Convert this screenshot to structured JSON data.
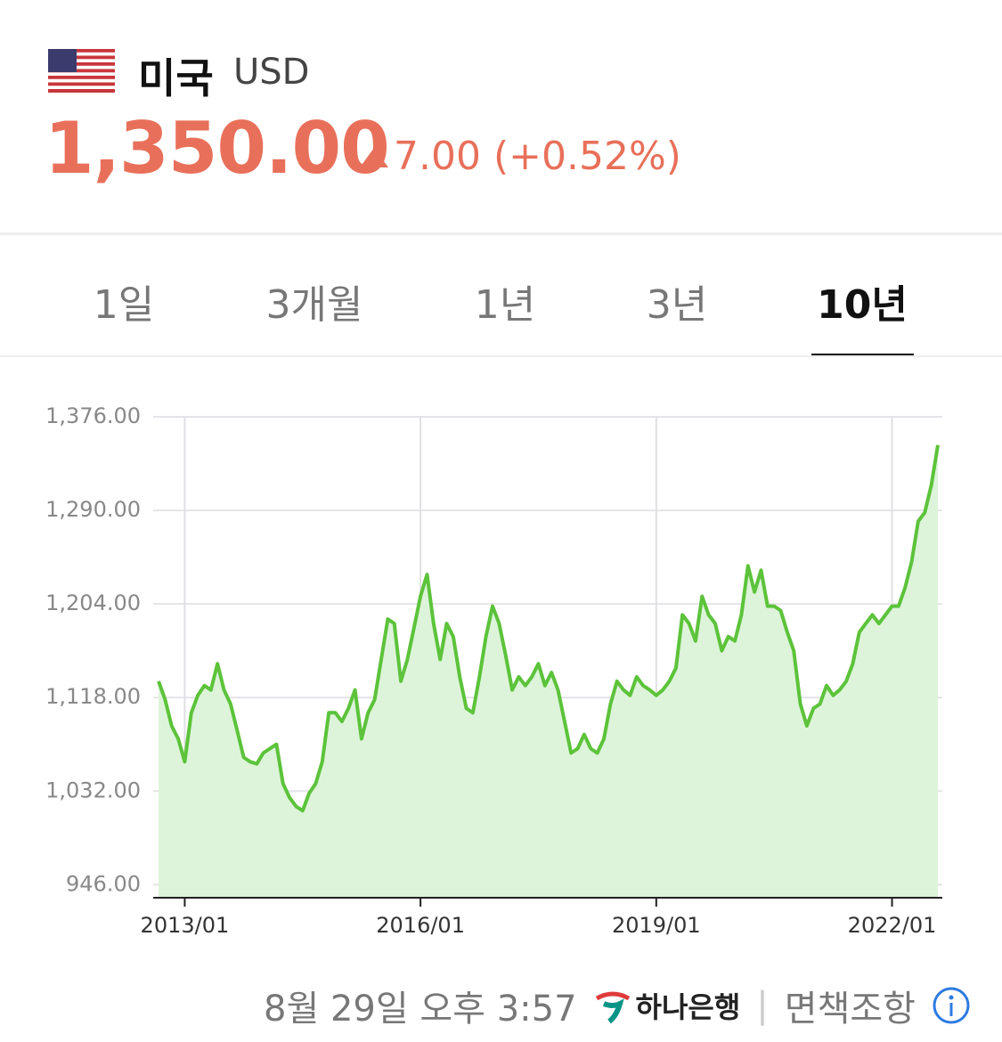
{
  "header": {
    "country": "미국",
    "currency": "USD",
    "price": "1,350.00",
    "change": "7.00",
    "change_pct": "(+0.52%)"
  },
  "tabs": [
    "1일",
    "3개월",
    "1년",
    "3년",
    "10년"
  ],
  "active_tab": 4,
  "chart_data": {
    "type": "line",
    "x": [
      "2012/09",
      "2012/10",
      "2012/11",
      "2012/12",
      "2013/01",
      "2013/02",
      "2013/03",
      "2013/04",
      "2013/05",
      "2013/06",
      "2013/07",
      "2013/08",
      "2013/09",
      "2013/10",
      "2013/11",
      "2013/12",
      "2014/01",
      "2014/02",
      "2014/03",
      "2014/04",
      "2014/05",
      "2014/06",
      "2014/07",
      "2014/08",
      "2014/09",
      "2014/10",
      "2014/11",
      "2014/12",
      "2015/01",
      "2015/02",
      "2015/03",
      "2015/04",
      "2015/05",
      "2015/06",
      "2015/07",
      "2015/08",
      "2015/09",
      "2015/10",
      "2015/11",
      "2015/12",
      "2016/01",
      "2016/02",
      "2016/03",
      "2016/04",
      "2016/05",
      "2016/06",
      "2016/07",
      "2016/08",
      "2016/09",
      "2016/10",
      "2016/11",
      "2016/12",
      "2017/01",
      "2017/02",
      "2017/03",
      "2017/04",
      "2017/05",
      "2017/06",
      "2017/07",
      "2017/08",
      "2017/09",
      "2017/10",
      "2017/11",
      "2017/12",
      "2018/01",
      "2018/02",
      "2018/03",
      "2018/04",
      "2018/05",
      "2018/06",
      "2018/07",
      "2018/08",
      "2018/09",
      "2018/10",
      "2018/11",
      "2018/12",
      "2019/01",
      "2019/02",
      "2019/03",
      "2019/04",
      "2019/05",
      "2019/06",
      "2019/07",
      "2019/08",
      "2019/09",
      "2019/10",
      "2019/11",
      "2019/12",
      "2020/01",
      "2020/02",
      "2020/03",
      "2020/04",
      "2020/05",
      "2020/06",
      "2020/07",
      "2020/08",
      "2020/09",
      "2020/10",
      "2020/11",
      "2020/12",
      "2021/01",
      "2021/02",
      "2021/03",
      "2021/04",
      "2021/05",
      "2021/06",
      "2021/07",
      "2021/08",
      "2021/09",
      "2021/10",
      "2021/11",
      "2021/12",
      "2022/01",
      "2022/02",
      "2022/03",
      "2022/04",
      "2022/05",
      "2022/06",
      "2022/07",
      "2022/08"
    ],
    "values": [
      1133,
      1116,
      1092,
      1080,
      1059,
      1104,
      1120,
      1129,
      1125,
      1149,
      1125,
      1112,
      1088,
      1063,
      1059,
      1057,
      1067,
      1071,
      1075,
      1039,
      1026,
      1018,
      1014,
      1030,
      1039,
      1059,
      1104,
      1104,
      1096,
      1108,
      1125,
      1080,
      1104,
      1116,
      1153,
      1190,
      1186,
      1133,
      1153,
      1182,
      1211,
      1231,
      1186,
      1153,
      1186,
      1174,
      1137,
      1108,
      1104,
      1137,
      1174,
      1202,
      1186,
      1157,
      1125,
      1137,
      1129,
      1137,
      1149,
      1129,
      1141,
      1125,
      1096,
      1067,
      1071,
      1084,
      1071,
      1067,
      1080,
      1112,
      1133,
      1125,
      1120,
      1137,
      1129,
      1125,
      1120,
      1125,
      1133,
      1145,
      1194,
      1186,
      1170,
      1211,
      1194,
      1186,
      1161,
      1174,
      1170,
      1194,
      1239,
      1215,
      1235,
      1202,
      1202,
      1198,
      1178,
      1161,
      1112,
      1092,
      1108,
      1112,
      1129,
      1120,
      1125,
      1133,
      1149,
      1178,
      1186,
      1194,
      1186,
      1194,
      1202,
      1202,
      1219,
      1243,
      1280,
      1288,
      1313,
      1350
    ],
    "color": "#5cc33a",
    "area_color": "#ddf4da",
    "xlim": [
      "2012/09",
      "2022/08"
    ],
    "xticks": [
      "2013/01",
      "2016/01",
      "2019/01",
      "2022/01"
    ],
    "ylim": [
      934,
      1376
    ],
    "yticks": [
      {
        "value": 946,
        "label": "946.00"
      },
      {
        "value": 1032,
        "label": "1,032.00"
      },
      {
        "value": 1118,
        "label": "1,118.00"
      },
      {
        "value": 1204,
        "label": "1,204.00"
      },
      {
        "value": 1290,
        "label": "1,290.00"
      },
      {
        "value": 1376,
        "label": "1,376.00"
      }
    ],
    "grid": true
  },
  "footer": {
    "timestamp": "8월 29일 오후 3:57",
    "bank": "하나은행",
    "disclaimer": "면책조항"
  }
}
